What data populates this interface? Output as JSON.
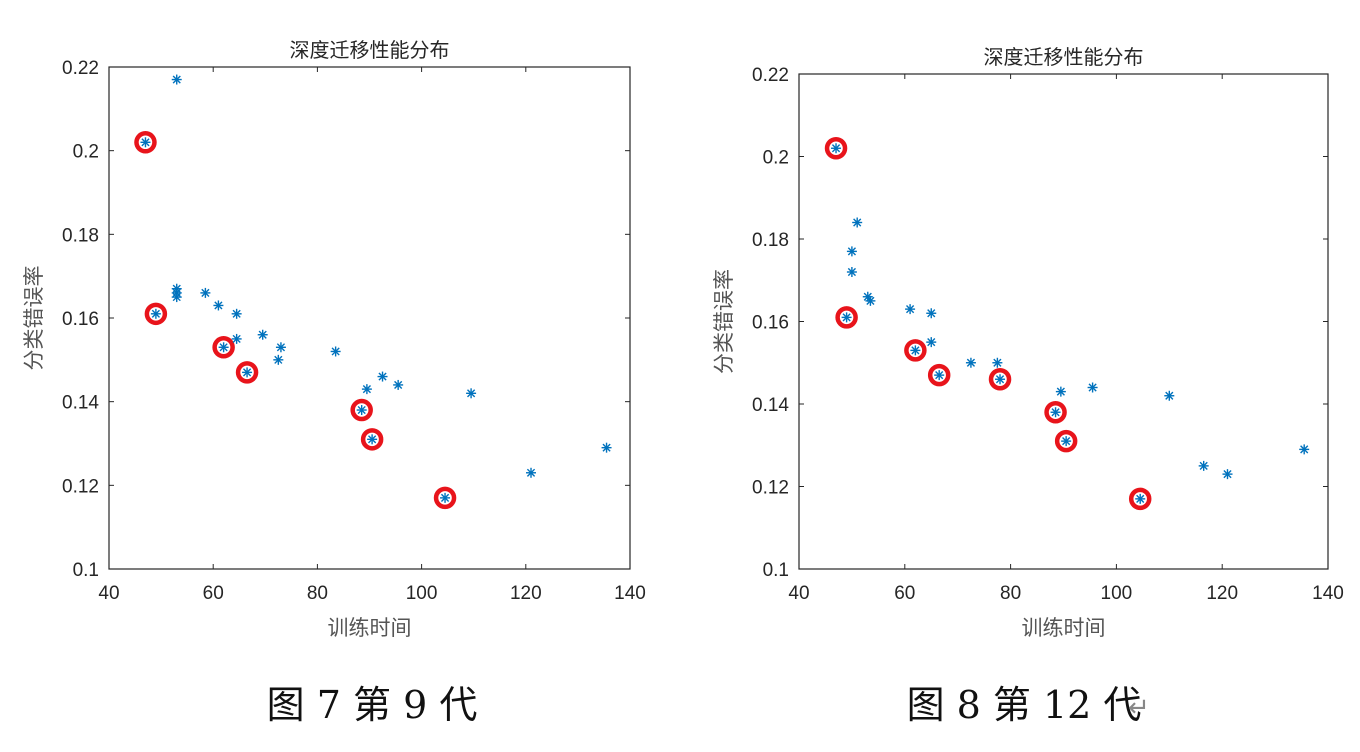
{
  "charts": [
    {
      "caption": "图 7  第 9 代",
      "caption_suffix": ""
    },
    {
      "caption": "图 8  第 12 代",
      "caption_suffix": "↵"
    }
  ],
  "chart_data": [
    {
      "type": "scatter",
      "title": "深度迁移性能分布",
      "xlabel": "训练时间",
      "ylabel": "分类错误率",
      "xlim": [
        40,
        140
      ],
      "ylim": [
        0.1,
        0.22
      ],
      "xticks": [
        40,
        60,
        80,
        100,
        120,
        140
      ],
      "yticks": [
        0.1,
        0.12,
        0.14,
        0.16,
        0.18,
        0.2,
        0.22
      ],
      "grid": false,
      "colors": {
        "points": "#0072BD",
        "highlight": "#E8141B",
        "axis": "#262626"
      },
      "series": [
        {
          "marker": "asterisk",
          "points": [
            [
              53.0,
              0.217
            ],
            [
              47.0,
              0.202
            ],
            [
              53.0,
              0.167
            ],
            [
              53.0,
              0.166
            ],
            [
              53.0,
              0.165
            ],
            [
              58.5,
              0.166
            ],
            [
              61.0,
              0.163
            ],
            [
              64.5,
              0.161
            ],
            [
              49.0,
              0.161
            ],
            [
              62.0,
              0.153
            ],
            [
              64.5,
              0.155
            ],
            [
              69.5,
              0.156
            ],
            [
              73.0,
              0.153
            ],
            [
              72.5,
              0.15
            ],
            [
              66.5,
              0.147
            ],
            [
              83.5,
              0.152
            ],
            [
              89.5,
              0.143
            ],
            [
              92.5,
              0.146
            ],
            [
              95.5,
              0.144
            ],
            [
              109.5,
              0.142
            ],
            [
              88.5,
              0.138
            ],
            [
              90.5,
              0.131
            ],
            [
              121.0,
              0.123
            ],
            [
              135.5,
              0.129
            ],
            [
              104.5,
              0.117
            ]
          ]
        },
        {
          "marker": "circle",
          "points": [
            [
              47.0,
              0.202
            ],
            [
              49.0,
              0.161
            ],
            [
              62.0,
              0.153
            ],
            [
              66.5,
              0.147
            ],
            [
              88.5,
              0.138
            ],
            [
              90.5,
              0.131
            ],
            [
              104.5,
              0.117
            ]
          ]
        }
      ]
    },
    {
      "type": "scatter",
      "title": "深度迁移性能分布",
      "xlabel": "训练时间",
      "ylabel": "分类错误率",
      "xlim": [
        40,
        140
      ],
      "ylim": [
        0.1,
        0.22
      ],
      "xticks": [
        40,
        60,
        80,
        100,
        120,
        140
      ],
      "yticks": [
        0.1,
        0.12,
        0.14,
        0.16,
        0.18,
        0.2,
        0.22
      ],
      "grid": false,
      "colors": {
        "points": "#0072BD",
        "highlight": "#E8141B",
        "axis": "#262626"
      },
      "series": [
        {
          "marker": "asterisk",
          "points": [
            [
              47.0,
              0.202
            ],
            [
              51.0,
              0.184
            ],
            [
              50.0,
              0.177
            ],
            [
              50.0,
              0.172
            ],
            [
              53.0,
              0.166
            ],
            [
              53.5,
              0.165
            ],
            [
              61.0,
              0.163
            ],
            [
              65.0,
              0.162
            ],
            [
              49.0,
              0.161
            ],
            [
              65.0,
              0.155
            ],
            [
              62.0,
              0.153
            ],
            [
              72.5,
              0.15
            ],
            [
              77.5,
              0.15
            ],
            [
              66.5,
              0.147
            ],
            [
              78.0,
              0.146
            ],
            [
              89.5,
              0.143
            ],
            [
              95.5,
              0.144
            ],
            [
              110.0,
              0.142
            ],
            [
              88.5,
              0.138
            ],
            [
              90.5,
              0.131
            ],
            [
              116.5,
              0.125
            ],
            [
              121.0,
              0.123
            ],
            [
              135.5,
              0.129
            ],
            [
              104.5,
              0.117
            ]
          ]
        },
        {
          "marker": "circle",
          "points": [
            [
              47.0,
              0.202
            ],
            [
              49.0,
              0.161
            ],
            [
              62.0,
              0.153
            ],
            [
              66.5,
              0.147
            ],
            [
              78.0,
              0.146
            ],
            [
              88.5,
              0.138
            ],
            [
              90.5,
              0.131
            ],
            [
              104.5,
              0.117
            ]
          ]
        }
      ]
    }
  ]
}
